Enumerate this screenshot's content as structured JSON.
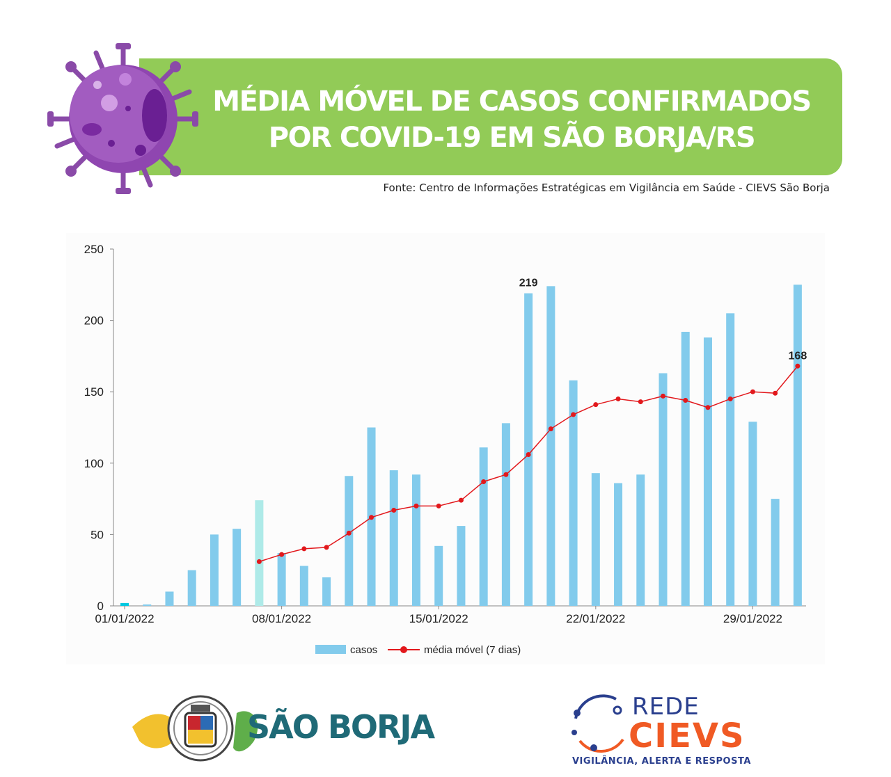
{
  "header": {
    "title_line1": "MÉDIA MÓVEL DE CASOS CONFIRMADOS",
    "title_line2": "POR COVID-19 EM SÃO BORJA/RS",
    "source": "Fonte: Centro de Informações Estratégicas em Vigilância em Saúde - CIEVS São Borja",
    "banner_color": "#92cb57",
    "virus_icon": "virus-icon"
  },
  "chart_data": {
    "type": "bar",
    "title": "",
    "xlabel": "",
    "ylabel": "",
    "ylim": [
      0,
      250
    ],
    "yticks": [
      0,
      50,
      100,
      150,
      200,
      250
    ],
    "x_tick_labels": [
      "01/01/2022",
      "08/01/2022",
      "15/01/2022",
      "22/01/2022",
      "29/01/2022"
    ],
    "x_tick_indices": [
      0,
      7,
      14,
      21,
      28
    ],
    "legend_position": "bottom",
    "grid": false,
    "dates": [
      "01/01/2022",
      "02/01/2022",
      "03/01/2022",
      "04/01/2022",
      "05/01/2022",
      "06/01/2022",
      "07/01/2022",
      "08/01/2022",
      "09/01/2022",
      "10/01/2022",
      "11/01/2022",
      "12/01/2022",
      "13/01/2022",
      "14/01/2022",
      "15/01/2022",
      "16/01/2022",
      "17/01/2022",
      "18/01/2022",
      "19/01/2022",
      "20/01/2022",
      "21/01/2022",
      "22/01/2022",
      "23/01/2022",
      "24/01/2022",
      "25/01/2022",
      "26/01/2022",
      "27/01/2022",
      "28/01/2022",
      "29/01/2022",
      "30/01/2022",
      "31/01/2022"
    ],
    "series": [
      {
        "name": "casos",
        "type": "bar",
        "color": "#82cbec",
        "values": [
          2,
          1,
          10,
          25,
          50,
          54,
          74,
          37,
          28,
          20,
          91,
          125,
          95,
          92,
          42,
          56,
          111,
          128,
          219,
          224,
          158,
          93,
          86,
          92,
          163,
          192,
          188,
          205,
          129,
          75,
          225
        ]
      },
      {
        "name": "média móvel (7 dias)",
        "type": "line",
        "color": "#e2181c",
        "values": [
          null,
          null,
          null,
          null,
          null,
          null,
          31,
          36,
          40,
          41,
          51,
          62,
          67,
          70,
          70,
          74,
          87,
          92,
          106,
          124,
          134,
          141,
          145,
          143,
          147,
          144,
          139,
          145,
          150,
          149,
          168
        ]
      }
    ],
    "highlight_colors": {
      "0": "#00c8e0",
      "6": "#aeeae8"
    },
    "annotations": [
      {
        "index": 18,
        "series": "casos",
        "text": "219"
      },
      {
        "index": 30,
        "series": "média móvel (7 dias)",
        "text": "168"
      }
    ]
  },
  "footer": {
    "left_logo_text": "SÃO BORJA",
    "right_logo_top": "REDE",
    "right_logo_main": "CIEVS",
    "right_logo_tagline": "VIGILÂNCIA, ALERTA E RESPOSTA",
    "left_logo_icon": "coat-of-arms-icon",
    "right_logo_icon": "network-orbit-icon"
  }
}
